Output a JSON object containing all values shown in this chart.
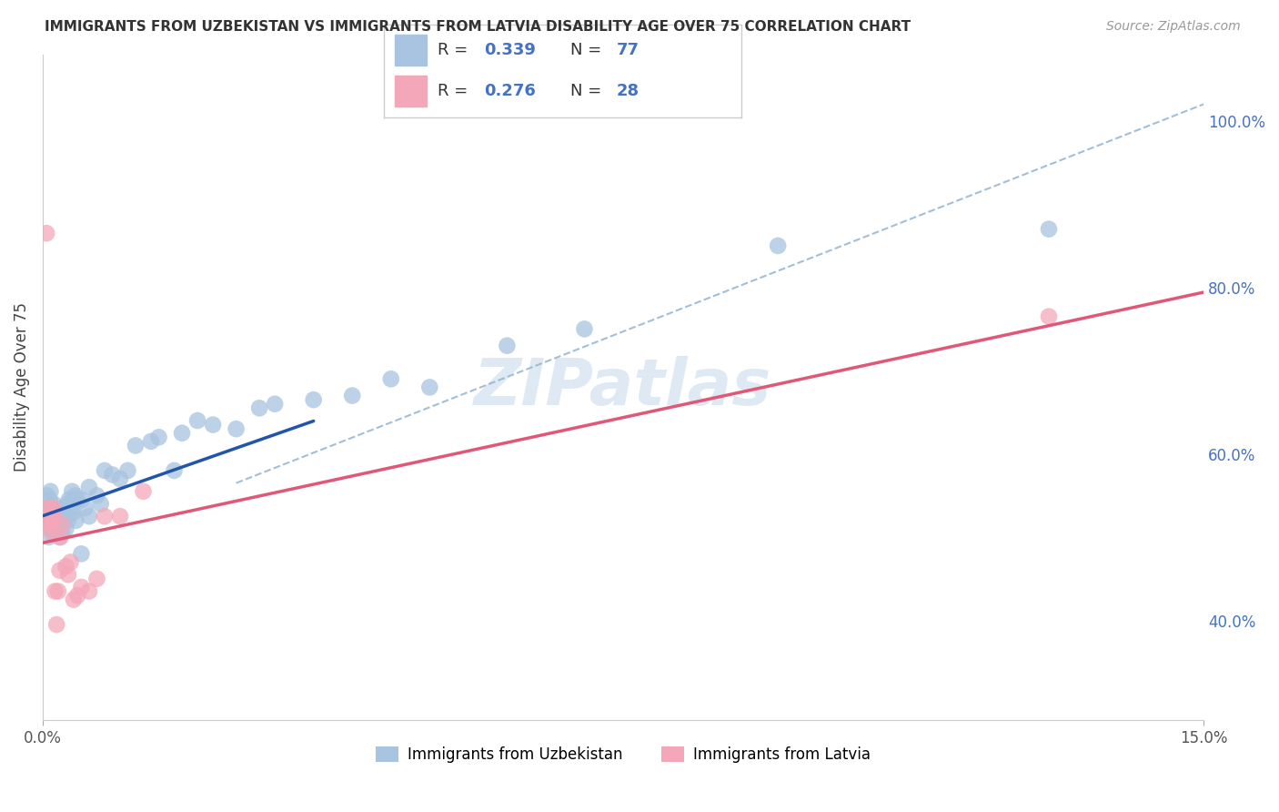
{
  "title": "IMMIGRANTS FROM UZBEKISTAN VS IMMIGRANTS FROM LATVIA DISABILITY AGE OVER 75 CORRELATION CHART",
  "source_text": "Source: ZipAtlas.com",
  "ylabel": "Disability Age Over 75",
  "xmin": 0.0,
  "xmax": 0.15,
  "ymin": 0.28,
  "ymax": 1.08,
  "xtick_labels": [
    "0.0%",
    "",
    "15.0%"
  ],
  "xtick_vals": [
    0.0,
    0.075,
    0.15
  ],
  "ytick_labels": [
    "40.0%",
    "60.0%",
    "80.0%",
    "100.0%"
  ],
  "ytick_vals": [
    0.4,
    0.6,
    0.8,
    1.0
  ],
  "legend_label_uz": "Immigrants from Uzbekistan",
  "legend_label_lv": "Immigrants from Latvia",
  "R_uz": "0.339",
  "N_uz": "77",
  "R_lv": "0.276",
  "N_lv": "28",
  "color_uz": "#a8c4e0",
  "color_lv": "#f4a7b9",
  "line_color_uz": "#2255aa",
  "line_color_lv": "#e05878",
  "line_color_dashed": "#9ab8d0",
  "background_color": "#ffffff",
  "watermark": "ZIPatlas",
  "uz_x": [
    0.0003,
    0.0005,
    0.0006,
    0.0007,
    0.0008,
    0.0009,
    0.001,
    0.001,
    0.001,
    0.0012,
    0.0013,
    0.0014,
    0.0014,
    0.0015,
    0.0015,
    0.0016,
    0.0016,
    0.0017,
    0.0018,
    0.0018,
    0.0019,
    0.002,
    0.002,
    0.002,
    0.0021,
    0.0022,
    0.0022,
    0.0023,
    0.0024,
    0.0025,
    0.0025,
    0.0026,
    0.0027,
    0.0028,
    0.003,
    0.003,
    0.0031,
    0.0032,
    0.0033,
    0.0034,
    0.0035,
    0.0036,
    0.0038,
    0.004,
    0.004,
    0.0042,
    0.0043,
    0.0045,
    0.005,
    0.005,
    0.0055,
    0.006,
    0.006,
    0.007,
    0.0075,
    0.008,
    0.009,
    0.01,
    0.011,
    0.012,
    0.014,
    0.015,
    0.017,
    0.018,
    0.02,
    0.022,
    0.025,
    0.028,
    0.03,
    0.035,
    0.04,
    0.045,
    0.05,
    0.06,
    0.07,
    0.095,
    0.13
  ],
  "uz_y": [
    0.535,
    0.515,
    0.55,
    0.52,
    0.5,
    0.545,
    0.51,
    0.535,
    0.555,
    0.53,
    0.52,
    0.515,
    0.54,
    0.505,
    0.52,
    0.51,
    0.535,
    0.52,
    0.505,
    0.53,
    0.52,
    0.51,
    0.505,
    0.53,
    0.515,
    0.5,
    0.525,
    0.51,
    0.525,
    0.505,
    0.52,
    0.515,
    0.535,
    0.52,
    0.51,
    0.535,
    0.525,
    0.54,
    0.52,
    0.545,
    0.54,
    0.53,
    0.555,
    0.53,
    0.545,
    0.55,
    0.52,
    0.545,
    0.48,
    0.545,
    0.535,
    0.525,
    0.56,
    0.55,
    0.54,
    0.58,
    0.575,
    0.57,
    0.58,
    0.61,
    0.615,
    0.62,
    0.58,
    0.625,
    0.64,
    0.635,
    0.63,
    0.655,
    0.66,
    0.665,
    0.67,
    0.69,
    0.68,
    0.73,
    0.75,
    0.85,
    0.87
  ],
  "lv_x": [
    0.0003,
    0.0005,
    0.0007,
    0.0008,
    0.001,
    0.001,
    0.0012,
    0.0013,
    0.0014,
    0.0015,
    0.0016,
    0.0018,
    0.002,
    0.0022,
    0.0023,
    0.0025,
    0.003,
    0.0033,
    0.0036,
    0.004,
    0.0045,
    0.005,
    0.006,
    0.007,
    0.008,
    0.01,
    0.013,
    0.13
  ],
  "lv_y": [
    0.535,
    0.865,
    0.515,
    0.52,
    0.515,
    0.535,
    0.505,
    0.52,
    0.535,
    0.525,
    0.435,
    0.395,
    0.435,
    0.46,
    0.5,
    0.515,
    0.465,
    0.455,
    0.47,
    0.425,
    0.43,
    0.44,
    0.435,
    0.45,
    0.525,
    0.525,
    0.555,
    0.765
  ]
}
